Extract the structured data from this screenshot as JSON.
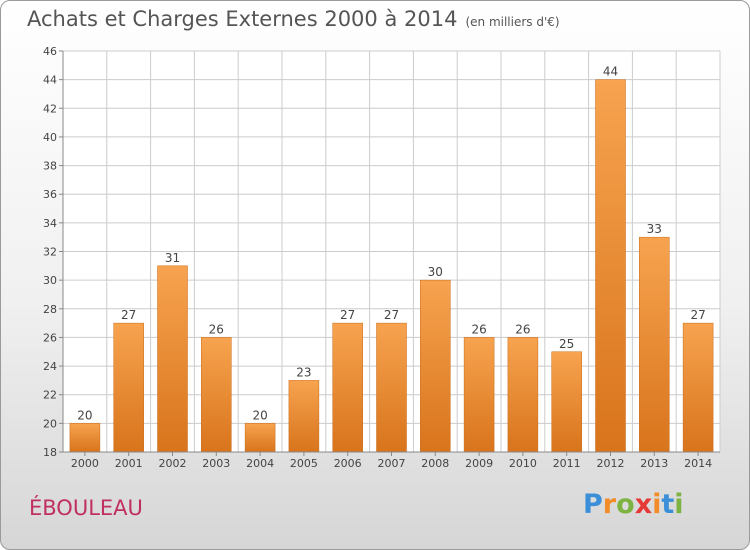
{
  "header": {
    "title": "Achats et Charges Externes 2000 à 2014",
    "subtitle": "(en milliers d'€)"
  },
  "footer": {
    "commune": "ÉBOULEAU",
    "logo_letters": [
      "P",
      "r",
      "o",
      "x",
      "i",
      "t",
      "i"
    ],
    "logo_colors": [
      "#3b8fd8",
      "#f28c28",
      "#7cb342",
      "#e53935",
      "#f28c28",
      "#3b8fd8",
      "#7cb342"
    ]
  },
  "colors": {
    "bar_light": "#f7a34f",
    "bar_dark": "#d8741c",
    "bar_edge": "#c96a16",
    "grid": "#cccccc",
    "axis": "#888888"
  },
  "chart_data": {
    "type": "bar",
    "title": "Achats et Charges Externes 2000 à 2014",
    "subtitle": "(en milliers d'€)",
    "xlabel": "",
    "ylabel": "",
    "categories": [
      "2000",
      "2001",
      "2002",
      "2003",
      "2004",
      "2005",
      "2006",
      "2007",
      "2008",
      "2009",
      "2010",
      "2011",
      "2012",
      "2013",
      "2014"
    ],
    "values": [
      20,
      27,
      31,
      26,
      20,
      23,
      27,
      27,
      30,
      26,
      26,
      25,
      44,
      33,
      27
    ],
    "ylim": [
      18,
      46
    ],
    "yticks": [
      18,
      20,
      22,
      24,
      26,
      28,
      30,
      32,
      34,
      36,
      38,
      40,
      42,
      44,
      46
    ],
    "grid": true,
    "legend": "none"
  }
}
